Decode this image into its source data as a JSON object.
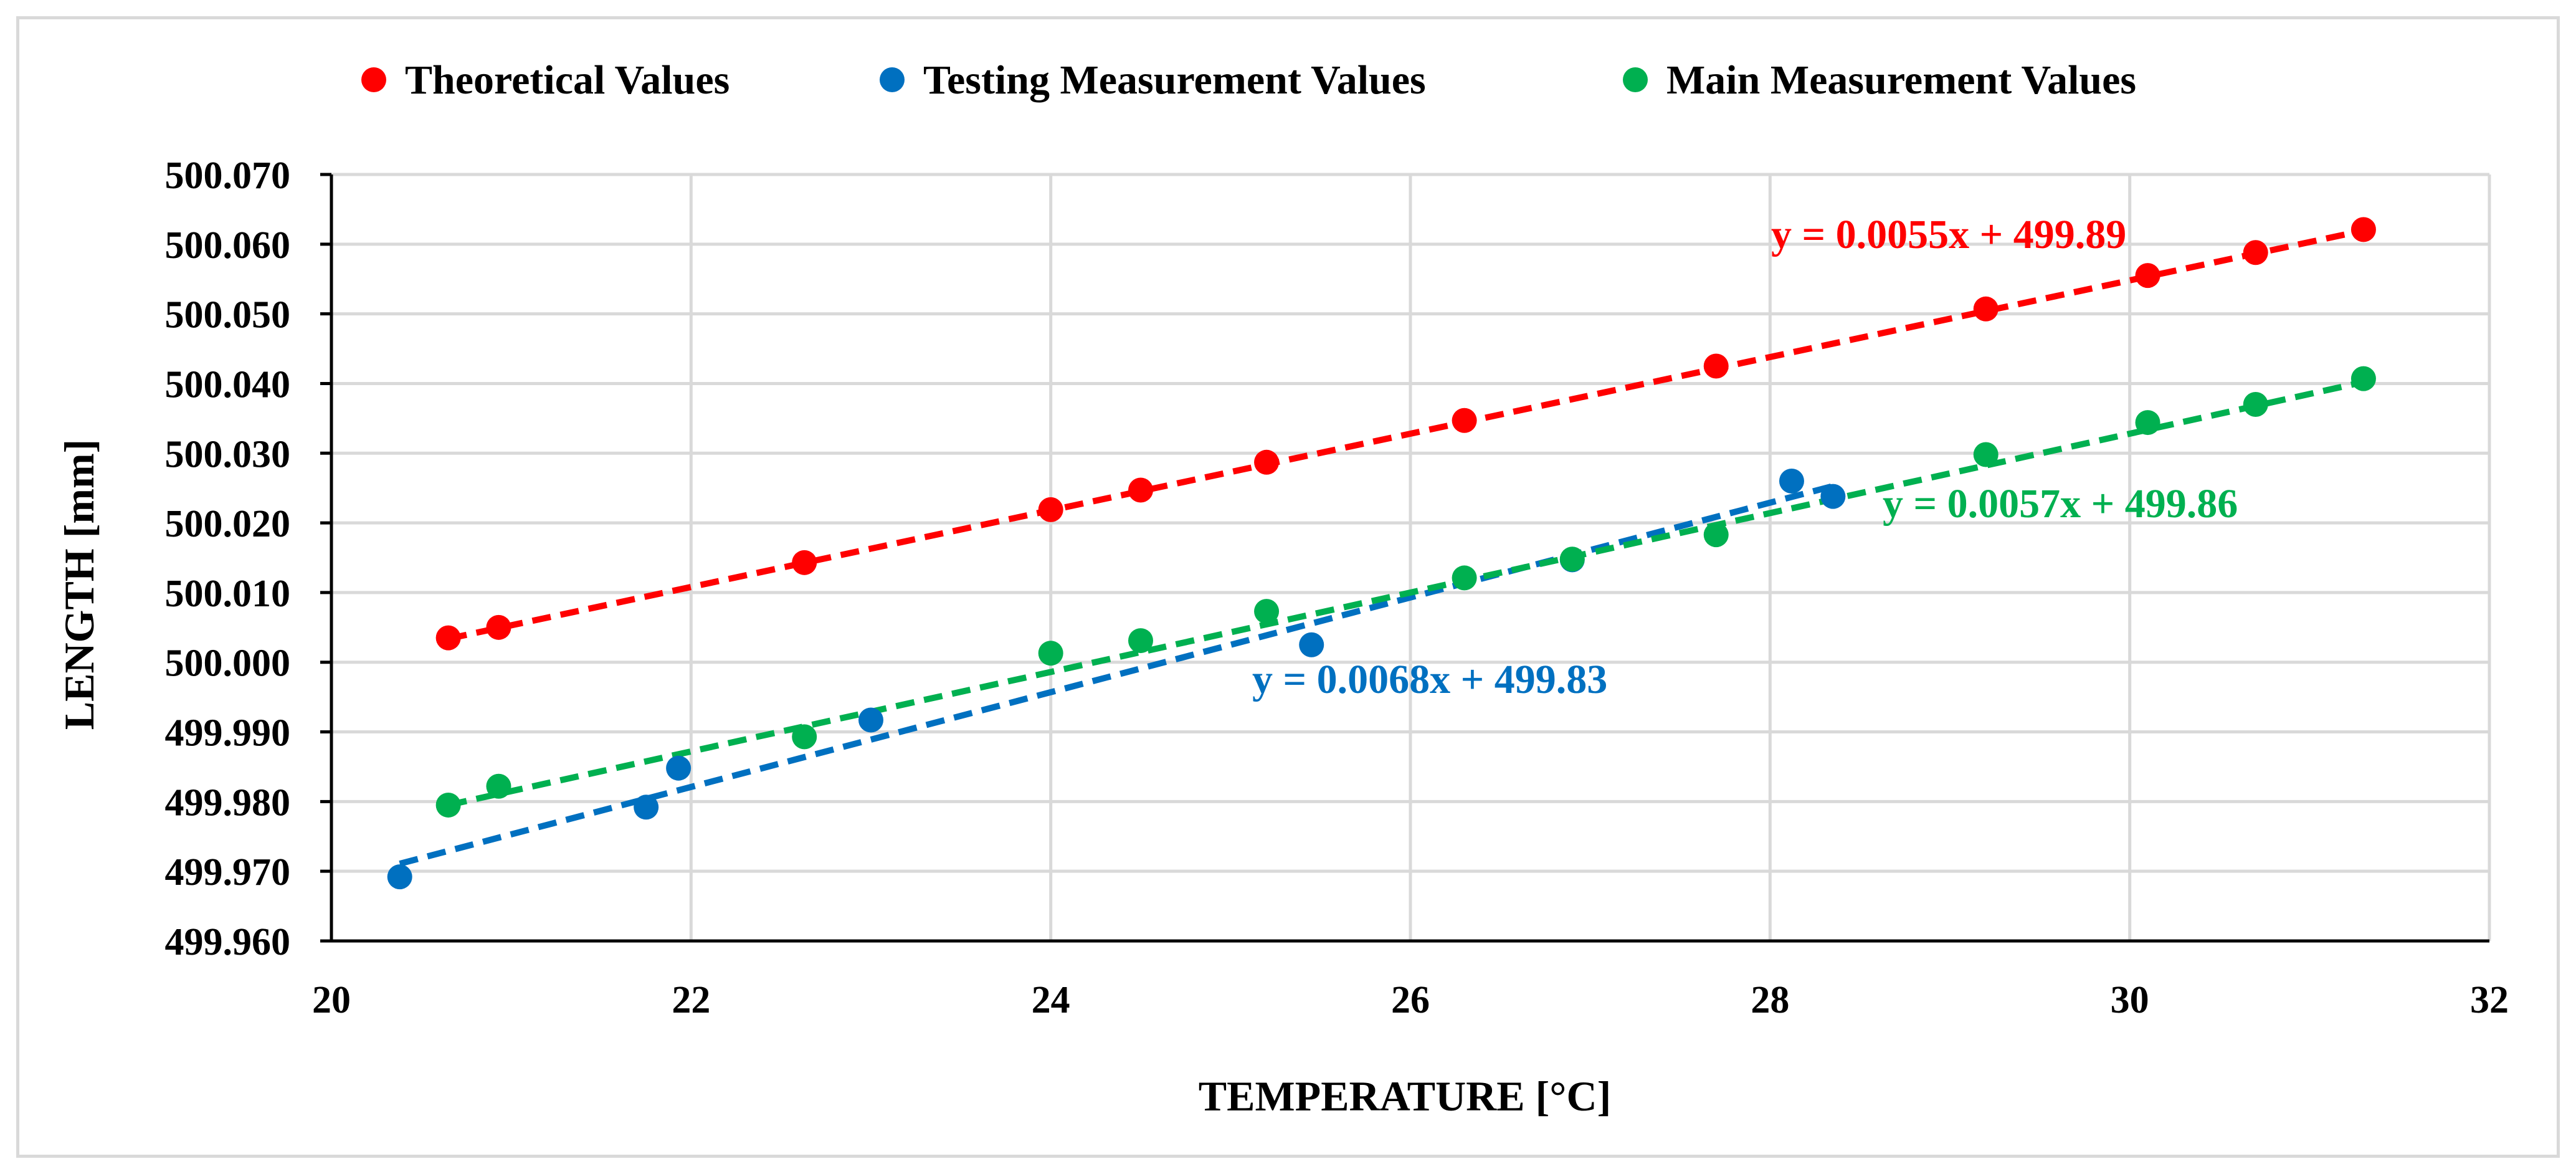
{
  "chart_data": {
    "type": "scatter",
    "title": "",
    "xlabel": "TEMPERATURE [°C]",
    "ylabel": "LENGTH [mm]",
    "xlim": [
      20,
      32
    ],
    "ylim": [
      499.96,
      500.07
    ],
    "xticks": [
      "20",
      "22",
      "24",
      "26",
      "28",
      "30",
      "32"
    ],
    "yticks": [
      "499.960",
      "499.970",
      "499.980",
      "499.990",
      "500.000",
      "500.010",
      "500.020",
      "500.030",
      "500.040",
      "500.050",
      "500.060",
      "500.070"
    ],
    "grid": true,
    "legend_position": "top",
    "series": [
      {
        "name": "Theoretical Values",
        "color": "#ff0000",
        "x": [
          20.65,
          20.93,
          22.63,
          24.0,
          24.5,
          25.2,
          26.3,
          27.7,
          29.2,
          30.1,
          30.7,
          31.3
        ],
        "y": [
          500.0035,
          500.005,
          500.0143,
          500.0219,
          500.0247,
          500.0287,
          500.0347,
          500.0425,
          500.0507,
          500.0555,
          500.0588,
          500.0621
        ],
        "trendline": {
          "slope": 0.0055,
          "intercept": 499.8898,
          "x_range": [
            20.65,
            31.3
          ],
          "label": "y = 0.0055x + 499.89"
        }
      },
      {
        "name": "Testing Measurement Values",
        "color": "#0070c0",
        "x": [
          20.38,
          21.75,
          21.93,
          23.0,
          25.45,
          26.9,
          28.12,
          28.35
        ],
        "y": [
          499.9692,
          499.9792,
          499.9848,
          499.9917,
          500.0025,
          500.0147,
          500.026,
          500.0238
        ],
        "trendline": {
          "slope": 0.0068,
          "intercept": 499.8325,
          "x_range": [
            20.38,
            28.35
          ],
          "label": "y = 0.0068x + 499.83"
        }
      },
      {
        "name": "Main Measurement Values",
        "color": "#00b050",
        "x": [
          20.65,
          20.93,
          22.63,
          24.0,
          24.5,
          25.2,
          26.3,
          26.9,
          27.7,
          29.2,
          30.1,
          30.7,
          31.3
        ],
        "y": [
          499.9795,
          499.9822,
          499.9893,
          500.0013,
          500.0031,
          500.0073,
          500.0121,
          500.0148,
          500.0183,
          500.0298,
          500.0344,
          500.037,
          500.0407
        ],
        "trendline": {
          "slope": 0.0057,
          "intercept": 499.8618,
          "x_range": [
            20.65,
            31.3
          ],
          "label": "y = 0.0057x + 499.86"
        }
      }
    ]
  }
}
